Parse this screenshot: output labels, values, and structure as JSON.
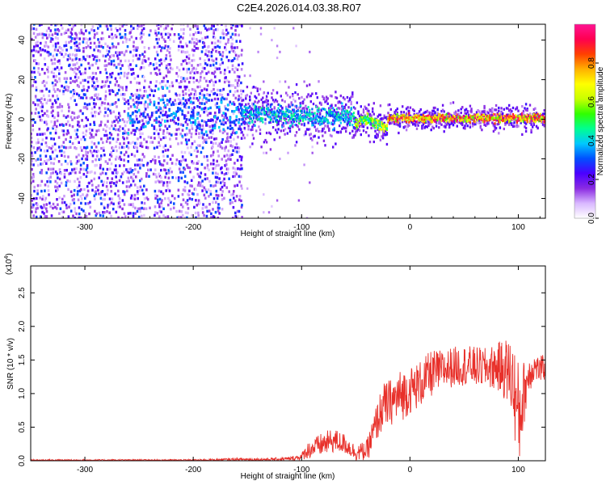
{
  "title": "C2E4.2026.014.03.38.R07",
  "colors": {
    "snr_line": "#e8302a",
    "axis": "#000000"
  },
  "chart_data": [
    {
      "type": "heatmap",
      "name": "spectrogram",
      "xlabel": "Height of straight line (km)",
      "ylabel": "Frequency (Hz)",
      "xlim": [
        -350,
        125
      ],
      "ylim": [
        -50,
        48
      ],
      "xticks": [
        -300,
        -200,
        -100,
        0,
        100
      ],
      "yticks": [
        -40,
        -20,
        0,
        20,
        40
      ],
      "colorbar": {
        "label": "Normalized spectral amplitude",
        "range": [
          0,
          1
        ],
        "ticks": [
          "0.0",
          "0.2",
          "0.4",
          "0.6",
          "0.8"
        ],
        "tick_values": [
          0,
          0.2,
          0.4,
          0.6,
          0.8
        ],
        "colors": [
          "#ffffff",
          "#d9b8ff",
          "#8a2be2",
          "#4b00ff",
          "#0050ff",
          "#00c8ff",
          "#00ff90",
          "#30ff00",
          "#c8ff00",
          "#ffff00",
          "#ffb000",
          "#ff4000",
          "#ff0050",
          "#ff1493"
        ]
      },
      "structure": [
        {
          "region": "noise",
          "x_range": [
            -350,
            -155
          ],
          "freq_spread_hz": 48,
          "amplitude": 0.2
        },
        {
          "region": "onset",
          "x_range": [
            -155,
            -50
          ],
          "center_hz": 3,
          "width_hz": 12,
          "amplitude": 0.45
        },
        {
          "region": "transition",
          "x_range": [
            -50,
            -20
          ],
          "center_hz": -2,
          "width_hz": 7,
          "amplitude": 0.65
        },
        {
          "region": "stable_line",
          "x_range": [
            -20,
            125
          ],
          "center_hz": 0.5,
          "width_hz": 5,
          "amplitude": 0.9
        }
      ]
    },
    {
      "type": "line",
      "name": "snr",
      "xlabel": "Height of straight line (km)",
      "ylabel": "SNR (10 * v/v)",
      "multiplier": "(x10",
      "multiplier_exp": "4",
      "xlim": [
        -350,
        125
      ],
      "ylim": [
        0,
        2.9
      ],
      "xticks": [
        -300,
        -200,
        -100,
        0,
        100
      ],
      "yticks": [
        "0.0",
        "0.5",
        "1.0",
        "1.5",
        "2.0",
        "2.5"
      ],
      "ytick_values": [
        0,
        0.5,
        1.0,
        1.5,
        2.0,
        2.5
      ],
      "series": [
        {
          "name": "SNR",
          "x": [
            -350,
            -300,
            -250,
            -200,
            -160,
            -130,
            -110,
            -100,
            -95,
            -80,
            -70,
            -60,
            -50,
            -40,
            -35,
            -30,
            -25,
            -20,
            -15,
            -10,
            0,
            10,
            20,
            30,
            40,
            50,
            60,
            70,
            80,
            90,
            95,
            100,
            105,
            110,
            115,
            120,
            125
          ],
          "mean": [
            0.01,
            0.01,
            0.01,
            0.01,
            0.02,
            0.02,
            0.03,
            0.06,
            0.15,
            0.25,
            0.3,
            0.25,
            0.12,
            0.15,
            0.35,
            0.6,
            0.8,
            0.85,
            0.9,
            0.95,
            1.05,
            1.15,
            1.3,
            1.35,
            1.4,
            1.42,
            1.4,
            1.38,
            1.4,
            1.35,
            1.2,
            0.6,
            1.0,
            1.3,
            1.4,
            1.35,
            1.4
          ],
          "spread": [
            0.01,
            0.01,
            0.01,
            0.01,
            0.02,
            0.02,
            0.03,
            0.05,
            0.12,
            0.18,
            0.18,
            0.15,
            0.12,
            0.15,
            0.25,
            0.3,
            0.35,
            0.35,
            0.35,
            0.4,
            0.35,
            0.35,
            0.35,
            0.3,
            0.3,
            0.3,
            0.3,
            0.3,
            0.35,
            0.5,
            0.6,
            0.9,
            0.5,
            0.3,
            0.2,
            0.2,
            0.2
          ]
        }
      ]
    }
  ]
}
